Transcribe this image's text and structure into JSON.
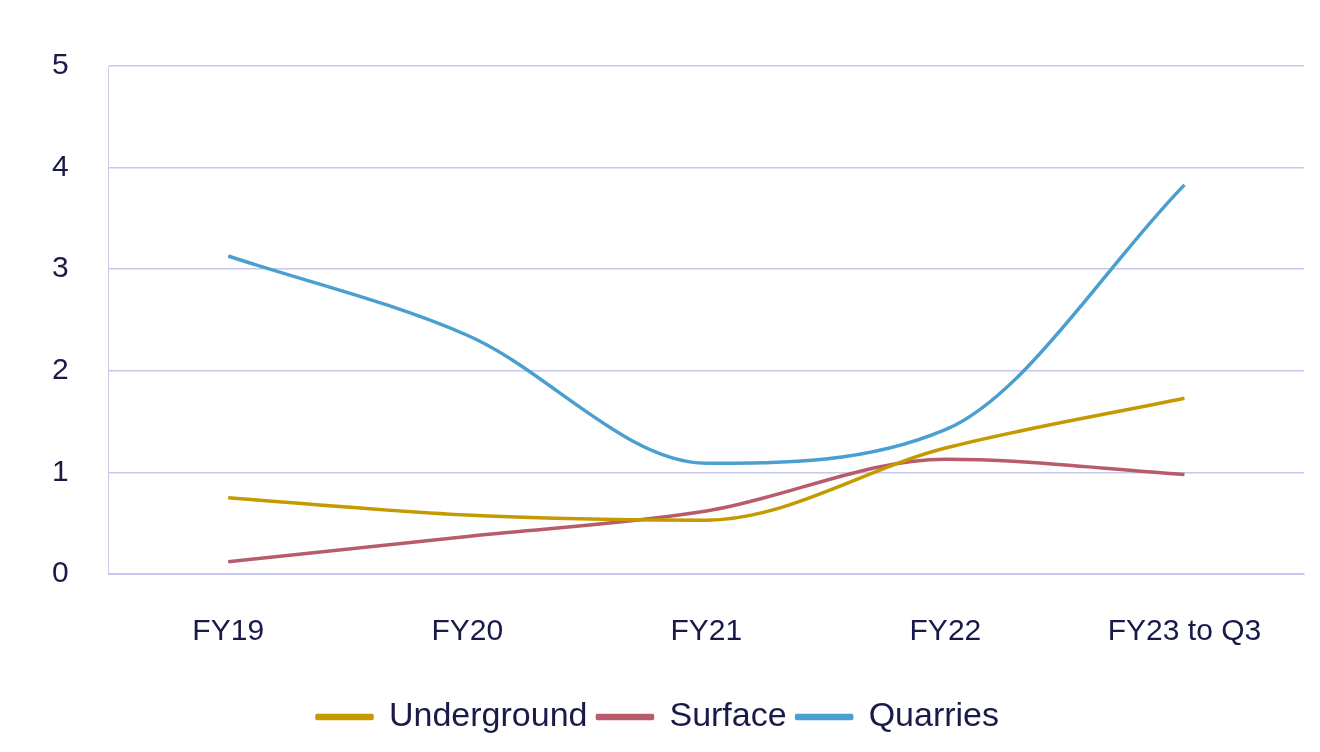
{
  "chart_data": {
    "type": "line",
    "categories": [
      "FY19",
      "FY20",
      "FY21",
      "FY22",
      "FY23 to Q3"
    ],
    "series": [
      {
        "name": "Underground",
        "color": "#c49a00",
        "values": [
          0.75,
          0.58,
          0.53,
          1.24,
          1.73
        ]
      },
      {
        "name": "Surface",
        "color": "#b85b6b",
        "values": [
          0.12,
          0.37,
          0.62,
          1.13,
          0.98
        ]
      },
      {
        "name": "Quarries",
        "color": "#4a9fd0",
        "values": [
          3.13,
          2.35,
          1.09,
          1.42,
          3.83
        ]
      }
    ],
    "ylim": [
      0,
      5
    ],
    "yticks": [
      0,
      1,
      2,
      3,
      4,
      5
    ],
    "grid": "y",
    "legend": "bottom",
    "marker": "none",
    "line_style": "solid"
  }
}
